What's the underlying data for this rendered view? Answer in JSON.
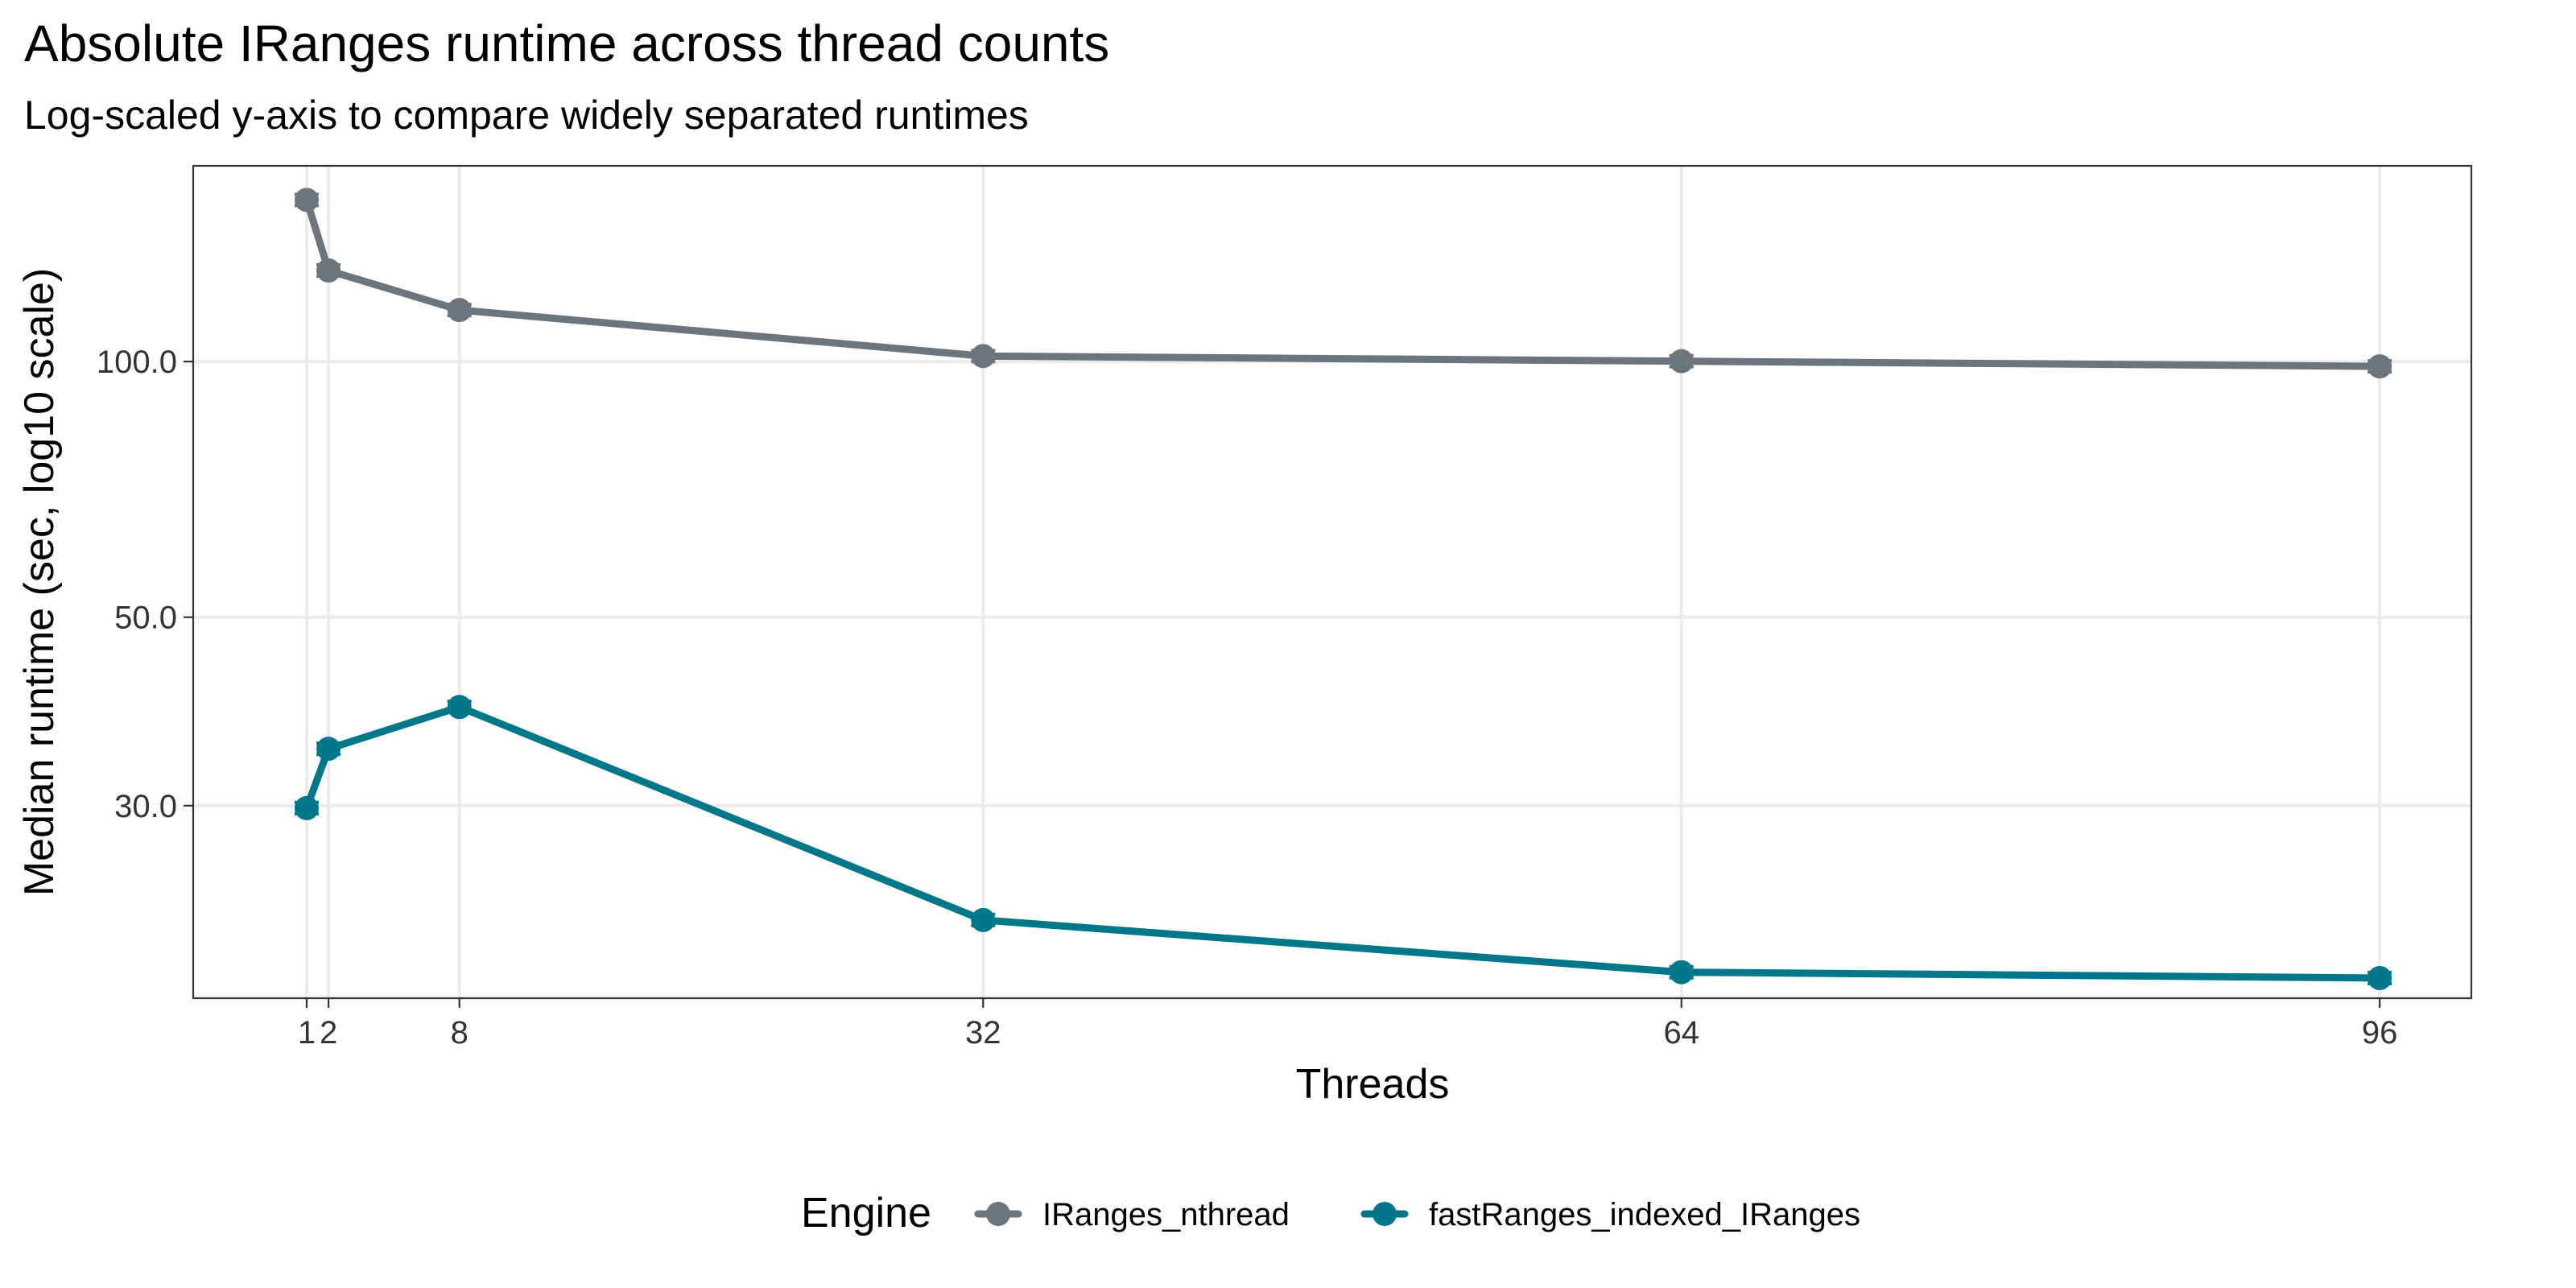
{
  "chart_data": {
    "type": "line",
    "title": "Absolute IRanges runtime across thread counts",
    "subtitle": "Log-scaled y-axis to compare widely separated runtimes",
    "xlabel": "Threads",
    "ylabel": "Median runtime (sec, log10 scale)",
    "y_scale": "log10",
    "xlim": [
      -4.2,
      100.2
    ],
    "ylim": [
      17.8,
      170
    ],
    "x_ticks": [
      1,
      2,
      8,
      32,
      64,
      96
    ],
    "x_tick_labels": [
      "1",
      "2",
      "8",
      "32",
      "64",
      "96"
    ],
    "y_ticks": [
      30,
      50,
      100
    ],
    "y_tick_labels": [
      "30.0",
      "50.0",
      "100.0"
    ],
    "grid": true,
    "legend": {
      "title": "Engine",
      "position": "bottom"
    },
    "series": [
      {
        "name": "IRanges_nthread",
        "color": "#6C757D",
        "x": [
          1,
          2,
          8,
          32,
          64,
          96
        ],
        "y": [
          155,
          128,
          115,
          101.5,
          100.1,
          98.7
        ]
      },
      {
        "name": "fastRanges_indexed_IRanges",
        "color": "#00788A",
        "x": [
          1,
          2,
          8,
          32,
          64,
          96
        ],
        "y": [
          29.8,
          35.0,
          39.2,
          22.0,
          19.1,
          18.8
        ]
      }
    ]
  }
}
